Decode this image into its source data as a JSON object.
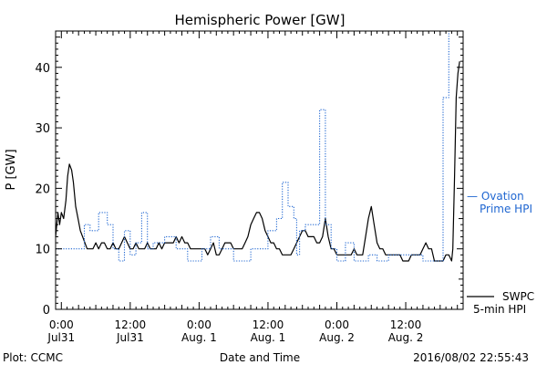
{
  "chart_data": {
    "type": "line",
    "title": "Hemispheric Power [GW]",
    "ylabel": "P [GW]",
    "xlabel": "Date and Time",
    "ylim": [
      0,
      46
    ],
    "xlim_hours": [
      -1,
      70
    ],
    "y_ticks": [
      "0",
      "10",
      "20",
      "30",
      "40"
    ],
    "x_ticks": [
      {
        "hour": 0,
        "time": "0:00",
        "date": "Jul31"
      },
      {
        "hour": 12,
        "time": "12:00",
        "date": "Jul31"
      },
      {
        "hour": 24,
        "time": "0:00",
        "date": "Aug. 1"
      },
      {
        "hour": 36,
        "time": "12:00",
        "date": "Aug. 1"
      },
      {
        "hour": 48,
        "time": "0:00",
        "date": "Aug. 2"
      },
      {
        "hour": 60,
        "time": "12:00",
        "date": "Aug. 2"
      }
    ],
    "grid": false,
    "series": [
      {
        "name": "SWPC 5-min HPI",
        "color": "#000000",
        "style": "solid",
        "points": [
          [
            -1,
            12
          ],
          [
            -0.6,
            16
          ],
          [
            -0.3,
            14
          ],
          [
            0,
            16
          ],
          [
            0.4,
            15
          ],
          [
            0.8,
            18
          ],
          [
            1.1,
            22
          ],
          [
            1.4,
            24
          ],
          [
            1.8,
            23
          ],
          [
            2.1,
            21
          ],
          [
            2.5,
            17
          ],
          [
            2.9,
            15
          ],
          [
            3.3,
            13
          ],
          [
            3.7,
            12
          ],
          [
            4.1,
            11
          ],
          [
            4.5,
            10
          ],
          [
            5,
            10
          ],
          [
            5.5,
            10
          ],
          [
            6,
            11
          ],
          [
            6.5,
            10
          ],
          [
            7,
            11
          ],
          [
            7.5,
            11
          ],
          [
            8,
            10
          ],
          [
            8.5,
            10
          ],
          [
            9,
            11
          ],
          [
            9.5,
            10
          ],
          [
            10,
            10
          ],
          [
            10.5,
            11
          ],
          [
            11,
            12
          ],
          [
            11.5,
            11
          ],
          [
            12,
            10
          ],
          [
            12.5,
            10
          ],
          [
            13,
            11
          ],
          [
            13.5,
            10
          ],
          [
            14,
            10
          ],
          [
            14.5,
            10
          ],
          [
            15,
            11
          ],
          [
            15.5,
            10
          ],
          [
            16,
            10
          ],
          [
            16.5,
            10
          ],
          [
            17,
            11
          ],
          [
            17.5,
            10
          ],
          [
            18,
            11
          ],
          [
            18.5,
            11
          ],
          [
            19,
            11
          ],
          [
            19.5,
            11
          ],
          [
            20,
            12
          ],
          [
            20.5,
            11
          ],
          [
            21,
            12
          ],
          [
            21.5,
            11
          ],
          [
            22,
            11
          ],
          [
            22.5,
            10
          ],
          [
            23,
            10
          ],
          [
            23.5,
            10
          ],
          [
            24,
            10
          ],
          [
            24.5,
            10
          ],
          [
            25,
            10
          ],
          [
            25.5,
            9
          ],
          [
            26,
            10
          ],
          [
            26.5,
            11
          ],
          [
            27,
            9
          ],
          [
            27.5,
            9
          ],
          [
            28,
            10
          ],
          [
            28.5,
            11
          ],
          [
            29,
            11
          ],
          [
            29.5,
            11
          ],
          [
            30,
            10
          ],
          [
            30.5,
            10
          ],
          [
            31,
            10
          ],
          [
            31.5,
            10
          ],
          [
            32,
            11
          ],
          [
            32.5,
            12
          ],
          [
            33,
            14
          ],
          [
            33.5,
            15
          ],
          [
            34,
            16
          ],
          [
            34.5,
            16
          ],
          [
            35,
            15
          ],
          [
            35.5,
            13
          ],
          [
            36,
            12
          ],
          [
            36.5,
            11
          ],
          [
            37,
            11
          ],
          [
            37.5,
            10
          ],
          [
            38,
            10
          ],
          [
            38.5,
            9
          ],
          [
            39,
            9
          ],
          [
            39.5,
            9
          ],
          [
            40,
            9
          ],
          [
            40.5,
            10
          ],
          [
            41,
            11
          ],
          [
            41.5,
            12
          ],
          [
            42,
            13
          ],
          [
            42.5,
            13
          ],
          [
            43,
            12
          ],
          [
            43.5,
            12
          ],
          [
            44,
            12
          ],
          [
            44.5,
            11
          ],
          [
            45,
            11
          ],
          [
            45.5,
            12
          ],
          [
            46,
            15
          ],
          [
            46.5,
            12
          ],
          [
            47,
            10
          ],
          [
            47.5,
            10
          ],
          [
            48,
            9
          ],
          [
            48.5,
            9
          ],
          [
            49,
            9
          ],
          [
            49.5,
            9
          ],
          [
            50,
            9
          ],
          [
            50.5,
            9
          ],
          [
            51,
            10
          ],
          [
            51.5,
            9
          ],
          [
            52,
            9
          ],
          [
            52.5,
            9
          ],
          [
            53,
            12
          ],
          [
            53.5,
            15
          ],
          [
            54,
            17
          ],
          [
            54.5,
            14
          ],
          [
            55,
            11
          ],
          [
            55.5,
            10
          ],
          [
            56,
            10
          ],
          [
            56.5,
            9
          ],
          [
            57,
            9
          ],
          [
            57.5,
            9
          ],
          [
            58,
            9
          ],
          [
            58.5,
            9
          ],
          [
            59,
            9
          ],
          [
            59.5,
            8
          ],
          [
            60,
            8
          ],
          [
            60.5,
            8
          ],
          [
            61,
            9
          ],
          [
            61.5,
            9
          ],
          [
            62,
            9
          ],
          [
            62.5,
            9
          ],
          [
            63,
            10
          ],
          [
            63.5,
            11
          ],
          [
            64,
            10
          ],
          [
            64.5,
            10
          ],
          [
            65,
            8
          ],
          [
            65.5,
            8
          ],
          [
            66,
            8
          ],
          [
            66.5,
            8
          ],
          [
            67,
            9
          ],
          [
            67.5,
            9
          ],
          [
            68,
            8
          ],
          [
            68.2,
            10
          ],
          [
            68.5,
            22
          ],
          [
            68.8,
            35
          ],
          [
            69.1,
            39
          ],
          [
            69.4,
            41
          ]
        ]
      },
      {
        "name": "Ovation Prime HPI",
        "color": "#1f66d1",
        "style": "dotted",
        "points": [
          [
            -1,
            10
          ],
          [
            4,
            10
          ],
          [
            4,
            14
          ],
          [
            5,
            14
          ],
          [
            5,
            13
          ],
          [
            6.5,
            13
          ],
          [
            6.5,
            16
          ],
          [
            8,
            16
          ],
          [
            8,
            14
          ],
          [
            9,
            14
          ],
          [
            9,
            10
          ],
          [
            10,
            10
          ],
          [
            10,
            8
          ],
          [
            11,
            8
          ],
          [
            11,
            13
          ],
          [
            12,
            13
          ],
          [
            12,
            9
          ],
          [
            13,
            9
          ],
          [
            13,
            11
          ],
          [
            14,
            11
          ],
          [
            14,
            16
          ],
          [
            15,
            16
          ],
          [
            15,
            10
          ],
          [
            16,
            10
          ],
          [
            16,
            11
          ],
          [
            18,
            11
          ],
          [
            18,
            12
          ],
          [
            20,
            12
          ],
          [
            20,
            10
          ],
          [
            22,
            10
          ],
          [
            22,
            8
          ],
          [
            24.5,
            8
          ],
          [
            24.5,
            10
          ],
          [
            26,
            10
          ],
          [
            26,
            12
          ],
          [
            27.5,
            12
          ],
          [
            27.5,
            10
          ],
          [
            30,
            10
          ],
          [
            30,
            8
          ],
          [
            33,
            8
          ],
          [
            33,
            10
          ],
          [
            36,
            10
          ],
          [
            36,
            13
          ],
          [
            37.5,
            13
          ],
          [
            37.5,
            15
          ],
          [
            38.5,
            15
          ],
          [
            38.5,
            21
          ],
          [
            39.5,
            21
          ],
          [
            39.5,
            17
          ],
          [
            40.5,
            17
          ],
          [
            40.5,
            15
          ],
          [
            41,
            15
          ],
          [
            41,
            9
          ],
          [
            41.5,
            9
          ],
          [
            41.5,
            13
          ],
          [
            42.5,
            13
          ],
          [
            42.5,
            14
          ],
          [
            45,
            14
          ],
          [
            45,
            33
          ],
          [
            46,
            33
          ],
          [
            46,
            14
          ],
          [
            47,
            14
          ],
          [
            47,
            10
          ],
          [
            48,
            10
          ],
          [
            48,
            8
          ],
          [
            49.5,
            8
          ],
          [
            49.5,
            11
          ],
          [
            51,
            11
          ],
          [
            51,
            8
          ],
          [
            53.5,
            8
          ],
          [
            53.5,
            9
          ],
          [
            55,
            9
          ],
          [
            55,
            8
          ],
          [
            57,
            8
          ],
          [
            57,
            9
          ],
          [
            60,
            9
          ],
          [
            60,
            9
          ],
          [
            63,
            9
          ],
          [
            63,
            8
          ],
          [
            66.5,
            8
          ],
          [
            66.5,
            35
          ],
          [
            67.5,
            35
          ],
          [
            67.5,
            46
          ]
        ]
      }
    ],
    "legend": {
      "placement": "right",
      "ovation_line1": "— Ovation",
      "ovation_line2": "Prime HPI",
      "swpc_line1": "SWPC",
      "swpc_line2": "5-min HPI"
    },
    "footer": {
      "left": "Plot: CCMC",
      "right": "2016/08/02 22:55:43"
    }
  }
}
